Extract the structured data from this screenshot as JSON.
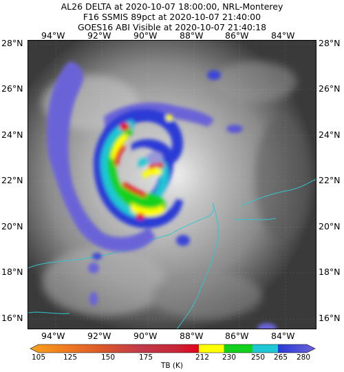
{
  "header": {
    "line1": "AL26 DELTA at 2020-10-07 18:00:00, NRL-Monterey",
    "line2": "F16 SSMIS 89pct at 2020-10-07 21:40:00",
    "line3": "GOES16 ABI Visible at 2020-10-07 21:40:18"
  },
  "map": {
    "lon_labels": [
      "94°W",
      "92°W",
      "90°W",
      "88°W",
      "86°W",
      "84°W"
    ],
    "lat_labels": [
      "28°N",
      "26°N",
      "24°N",
      "22°N",
      "20°N",
      "18°N",
      "16°N"
    ]
  },
  "colorbar": {
    "title": "TB (K)",
    "ticks": [
      "105",
      "125",
      "150",
      "175",
      "212",
      "230",
      "250",
      "265",
      "280"
    ],
    "colors": {
      "orange": "#f7a21d",
      "red": "#d7191c",
      "deep_red": "#e6001a",
      "yellow": "#ffff00",
      "green": "#15d11f",
      "cyan": "#1fc8d4",
      "blue": "#2a3bd6",
      "violet": "#6b63d8"
    }
  }
}
